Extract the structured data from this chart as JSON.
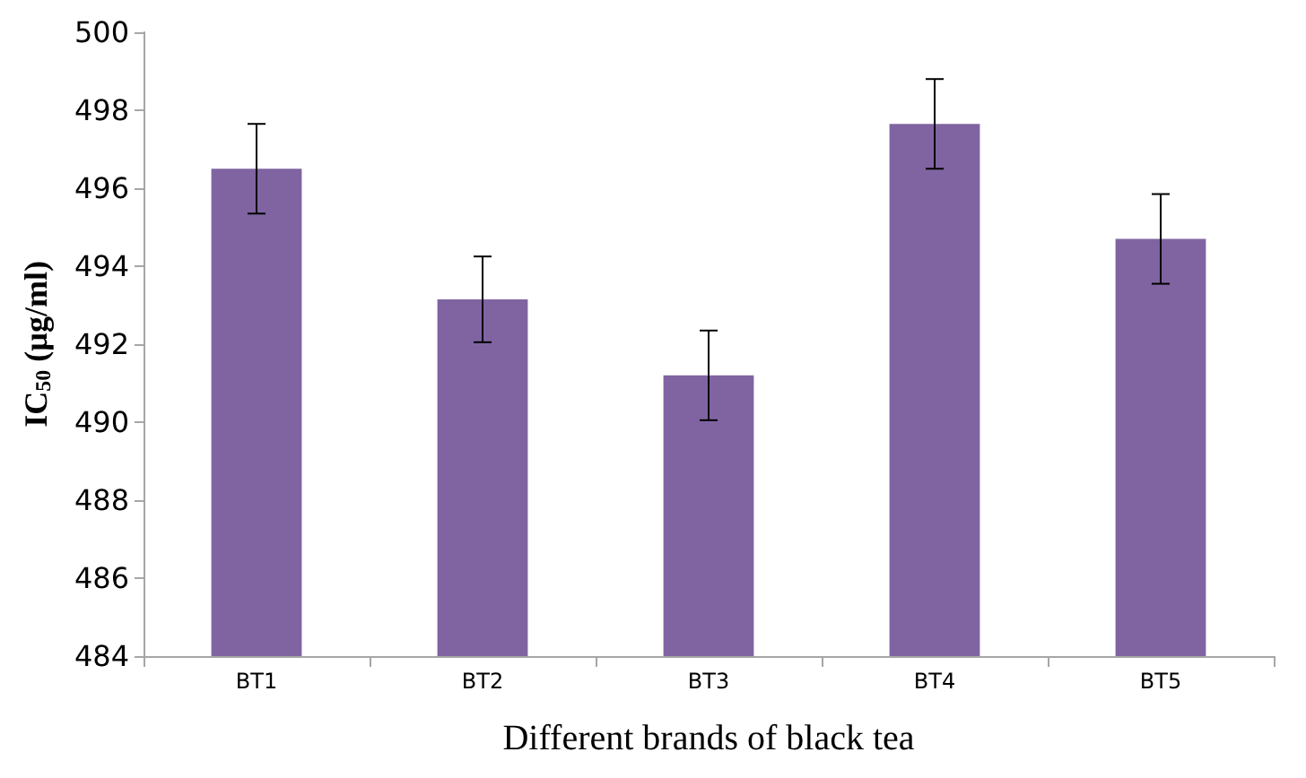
{
  "chart_data": {
    "type": "bar",
    "categories": [
      "BT1",
      "BT2",
      "BT3",
      "BT4",
      "BT5"
    ],
    "values": [
      496.5,
      493.15,
      491.2,
      497.65,
      494.7
    ],
    "errors": [
      1.15,
      1.1,
      1.15,
      1.15,
      1.15
    ],
    "color": "#8064a2",
    "xlabel": "Different brands of black tea",
    "ylabel": "IC$_{50}$ (µg/ml)",
    "ylim": [
      484,
      500
    ],
    "yticks": [
      484,
      486,
      488,
      490,
      492,
      494,
      496,
      498,
      500
    ],
    "grid": false
  }
}
